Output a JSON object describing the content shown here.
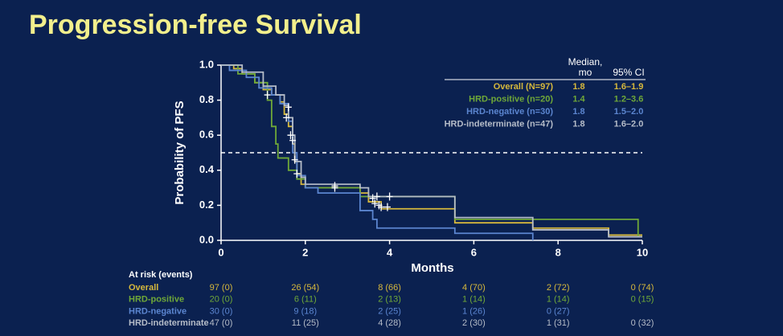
{
  "chart_data": {
    "type": "line",
    "step": true,
    "title": "Progression-free Survival",
    "xlabel": "Months",
    "ylabel": "Probability of PFS",
    "xlim": [
      0,
      10
    ],
    "ylim": [
      0,
      1
    ],
    "xticks": [
      0,
      2,
      4,
      6,
      8,
      10
    ],
    "yticks": [
      {
        "value": 0,
        "label": "0.0"
      },
      0.2,
      0.4,
      0.6,
      0.8,
      {
        "value": 1,
        "label": "1.0"
      }
    ],
    "reference_line": 0.5,
    "legend_headers": [
      "Median, mo",
      "95% CI"
    ],
    "series": [
      {
        "name": "Overall (N=97)",
        "color": "#d6b83c",
        "median": "1.8",
        "ci": "1.6–1.9",
        "x": [
          0,
          0.3,
          0.5,
          0.8,
          1.0,
          1.2,
          1.4,
          1.5,
          1.6,
          1.7,
          1.75,
          1.8,
          1.9,
          2.0,
          3.3,
          3.5,
          3.8,
          5.55,
          7.4,
          9.2,
          10
        ],
        "values": [
          1.0,
          0.98,
          0.95,
          0.9,
          0.86,
          0.83,
          0.79,
          0.72,
          0.65,
          0.55,
          0.45,
          0.38,
          0.32,
          0.3,
          0.27,
          0.22,
          0.18,
          0.1,
          0.07,
          0.03,
          0.03
        ]
      },
      {
        "name": "HRD-positive (n=20)",
        "color": "#6fa838",
        "median": "1.4",
        "ci": "1.2–3.6",
        "x": [
          0,
          0.4,
          0.8,
          1.1,
          1.2,
          1.3,
          1.35,
          1.6,
          1.8,
          2.0,
          3.3,
          5.55,
          9.9,
          10
        ],
        "values": [
          1.0,
          0.95,
          0.9,
          0.8,
          0.65,
          0.55,
          0.47,
          0.4,
          0.35,
          0.3,
          0.25,
          0.12,
          0.02,
          0.02
        ]
      },
      {
        "name": "HRD-negative (n=30)",
        "color": "#5b85cf",
        "median": "1.8",
        "ci": "1.5–2.0",
        "x": [
          0,
          0.2,
          0.6,
          0.9,
          1.2,
          1.4,
          1.6,
          1.7,
          1.8,
          2.0,
          2.3,
          3.3,
          3.6,
          3.7,
          5.55,
          7.4
        ],
        "values": [
          1.0,
          0.97,
          0.93,
          0.87,
          0.83,
          0.78,
          0.68,
          0.5,
          0.37,
          0.3,
          0.27,
          0.17,
          0.12,
          0.07,
          0.04,
          0.0
        ]
      },
      {
        "name": "HRD-indeterminate (n=47)",
        "color": "#b5bcc8",
        "median": "1.8",
        "ci": "1.6–2.0",
        "x": [
          0,
          0.5,
          1.0,
          1.3,
          1.5,
          1.6,
          1.7,
          1.75,
          1.9,
          2.0,
          3.3,
          3.5,
          5.55,
          7.4,
          9.2,
          10
        ],
        "values": [
          1.0,
          0.96,
          0.88,
          0.83,
          0.77,
          0.7,
          0.6,
          0.45,
          0.36,
          0.32,
          0.3,
          0.25,
          0.13,
          0.06,
          0.02,
          0.02
        ]
      }
    ],
    "censor_marks": {
      "color": "#ffffff",
      "x": [
        1.1,
        1.6,
        1.55,
        1.65,
        1.7,
        1.75,
        1.8,
        2.7,
        2.7,
        3.6,
        3.7,
        3.65,
        3.75,
        3.8,
        3.95,
        4.0
      ],
      "y": [
        0.83,
        0.76,
        0.7,
        0.6,
        0.57,
        0.46,
        0.38,
        0.31,
        0.3,
        0.24,
        0.25,
        0.21,
        0.2,
        0.19,
        0.19,
        0.25
      ]
    },
    "risk_table": {
      "title": "At risk (events)",
      "rows": [
        {
          "name": "Overall",
          "color": "#d6b83c",
          "values": [
            "97 (0)",
            "26 (54)",
            "8 (66)",
            "4 (70)",
            "2 (72)",
            "0 (74)"
          ]
        },
        {
          "name": "HRD-positive",
          "color": "#6fa838",
          "values": [
            "20 (0)",
            "6 (11)",
            "2 (13)",
            "1 (14)",
            "1 (14)",
            "0 (15)"
          ]
        },
        {
          "name": "HRD-negative",
          "color": "#5b85cf",
          "values": [
            "30 (0)",
            "9 (18)",
            "2 (25)",
            "1 (26)",
            "0 (27)"
          ]
        },
        {
          "name": "HRD-indeterminate",
          "color": "#b5bcc8",
          "values": [
            "47 (0)",
            "11 (25)",
            "4 (28)",
            "2 (30)",
            "1 (31)",
            "0 (32)"
          ]
        }
      ]
    }
  }
}
